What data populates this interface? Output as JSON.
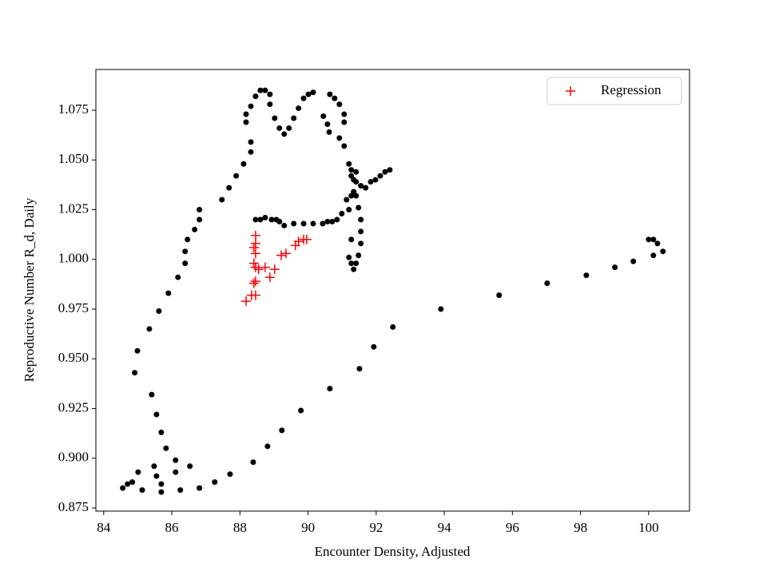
{
  "chart_data": {
    "type": "scatter",
    "xlabel": "Encounter Density, Adjusted",
    "ylabel": "Reproductive Number R_d, Daily",
    "xlim": [
      83.77,
      101.2
    ],
    "ylim": [
      0.8734,
      1.0955
    ],
    "xticks": [
      84,
      86,
      88,
      90,
      92,
      94,
      96,
      98,
      100
    ],
    "yticks": [
      0.875,
      {
        "value": 0.9,
        "label": "0.900"
      },
      0.925,
      {
        "value": 0.95,
        "label": "0.950"
      },
      0.975,
      {
        "value": 1.0,
        "label": "1.000"
      },
      1.025,
      {
        "value": 1.05,
        "label": "1.050"
      },
      1.075
    ],
    "legend_position": "upper right",
    "series": [
      {
        "color": "#000000",
        "marker": "o",
        "x": [
          84.56,
          84.7,
          84.84,
          85.13,
          85.55,
          85.69,
          86.25,
          86.81,
          87.26,
          87.71,
          88.39,
          88.81,
          89.23,
          89.79,
          90.64,
          91.51,
          91.93,
          92.49,
          93.9,
          95.61,
          97.02,
          98.17,
          99.01,
          99.55,
          100.0,
          100.14,
          100.26,
          100.14,
          100.42,
          85.01,
          85.48,
          85.69,
          86.11,
          86.11,
          86.53,
          85.83,
          85.69,
          85.55,
          85.41,
          84.91,
          84.99,
          85.34,
          85.62,
          85.9,
          86.18,
          86.39,
          86.39,
          86.46,
          86.67,
          86.81,
          86.81,
          87.47,
          87.68,
          87.89,
          88.11,
          88.32,
          88.32,
          88.18,
          88.18,
          88.32,
          88.46,
          88.6,
          88.74,
          88.88,
          88.88,
          89.02,
          89.16,
          89.3,
          89.44,
          89.58,
          89.72,
          89.87,
          90.01,
          90.15,
          90.64,
          90.78,
          90.92,
          91.06,
          91.06,
          90.92,
          91.06,
          91.2,
          91.27,
          91.41,
          91.55,
          91.69,
          91.84,
          91.98,
          92.12,
          92.26,
          92.4,
          91.27,
          91.13,
          90.99,
          90.85,
          88.46,
          88.6,
          88.74,
          88.93,
          89.07,
          89.16,
          89.3,
          89.58,
          89.87,
          90.15,
          90.43,
          90.57,
          90.71,
          91.2,
          91.27,
          91.34,
          91.41,
          91.48,
          91.55,
          91.55,
          91.55,
          91.48,
          91.41,
          91.34,
          91.2,
          91.27,
          91.41,
          91.27,
          91.34,
          90.45,
          90.57,
          90.62
        ],
        "values": [
          0.885,
          0.887,
          0.888,
          0.884,
          0.891,
          0.883,
          0.884,
          0.885,
          0.888,
          0.892,
          0.898,
          0.906,
          0.914,
          0.924,
          0.935,
          0.945,
          0.956,
          0.966,
          0.975,
          0.982,
          0.988,
          0.992,
          0.996,
          0.999,
          1.01,
          1.01,
          1.008,
          1.002,
          1.004,
          0.893,
          0.896,
          0.887,
          0.899,
          0.893,
          0.896,
          0.905,
          0.913,
          0.922,
          0.932,
          0.943,
          0.954,
          0.965,
          0.974,
          0.983,
          0.991,
          0.998,
          1.004,
          1.01,
          1.015,
          1.02,
          1.025,
          1.03,
          1.036,
          1.042,
          1.048,
          1.054,
          1.059,
          1.069,
          1.073,
          1.077,
          1.082,
          1.085,
          1.085,
          1.083,
          1.078,
          1.071,
          1.066,
          1.063,
          1.066,
          1.071,
          1.076,
          1.081,
          1.083,
          1.084,
          1.083,
          1.081,
          1.078,
          1.073,
          1.069,
          1.061,
          1.057,
          1.048,
          1.042,
          1.039,
          1.037,
          1.036,
          1.039,
          1.04,
          1.042,
          1.044,
          1.045,
          1.032,
          1.03,
          1.023,
          1.02,
          1.02,
          1.02,
          1.021,
          1.02,
          1.02,
          1.019,
          1.017,
          1.018,
          1.018,
          1.018,
          1.018,
          1.019,
          1.019,
          1.001,
          0.998,
          0.995,
          0.998,
          1.002,
          1.008,
          1.014,
          1.02,
          1.026,
          1.032,
          1.034,
          1.025,
          1.01,
          1.044,
          1.045,
          1.04,
          1.072,
          1.068,
          1.064
        ]
      },
      {
        "name": "Regression",
        "color": "#ff0000",
        "marker": "+",
        "x": [
          88.18,
          88.34,
          88.46,
          88.41,
          88.46,
          88.46,
          88.41,
          88.46,
          88.41,
          88.46,
          88.46,
          88.55,
          88.74,
          88.88,
          89.02,
          89.21,
          89.35,
          89.63,
          89.72,
          89.87,
          89.96
        ],
        "values": [
          0.979,
          0.982,
          0.982,
          0.988,
          0.989,
          0.996,
          0.998,
          1.003,
          1.006,
          1.008,
          1.012,
          0.995,
          0.996,
          0.991,
          0.995,
          1.002,
          1.003,
          1.007,
          1.009,
          1.01,
          1.01
        ]
      }
    ]
  }
}
